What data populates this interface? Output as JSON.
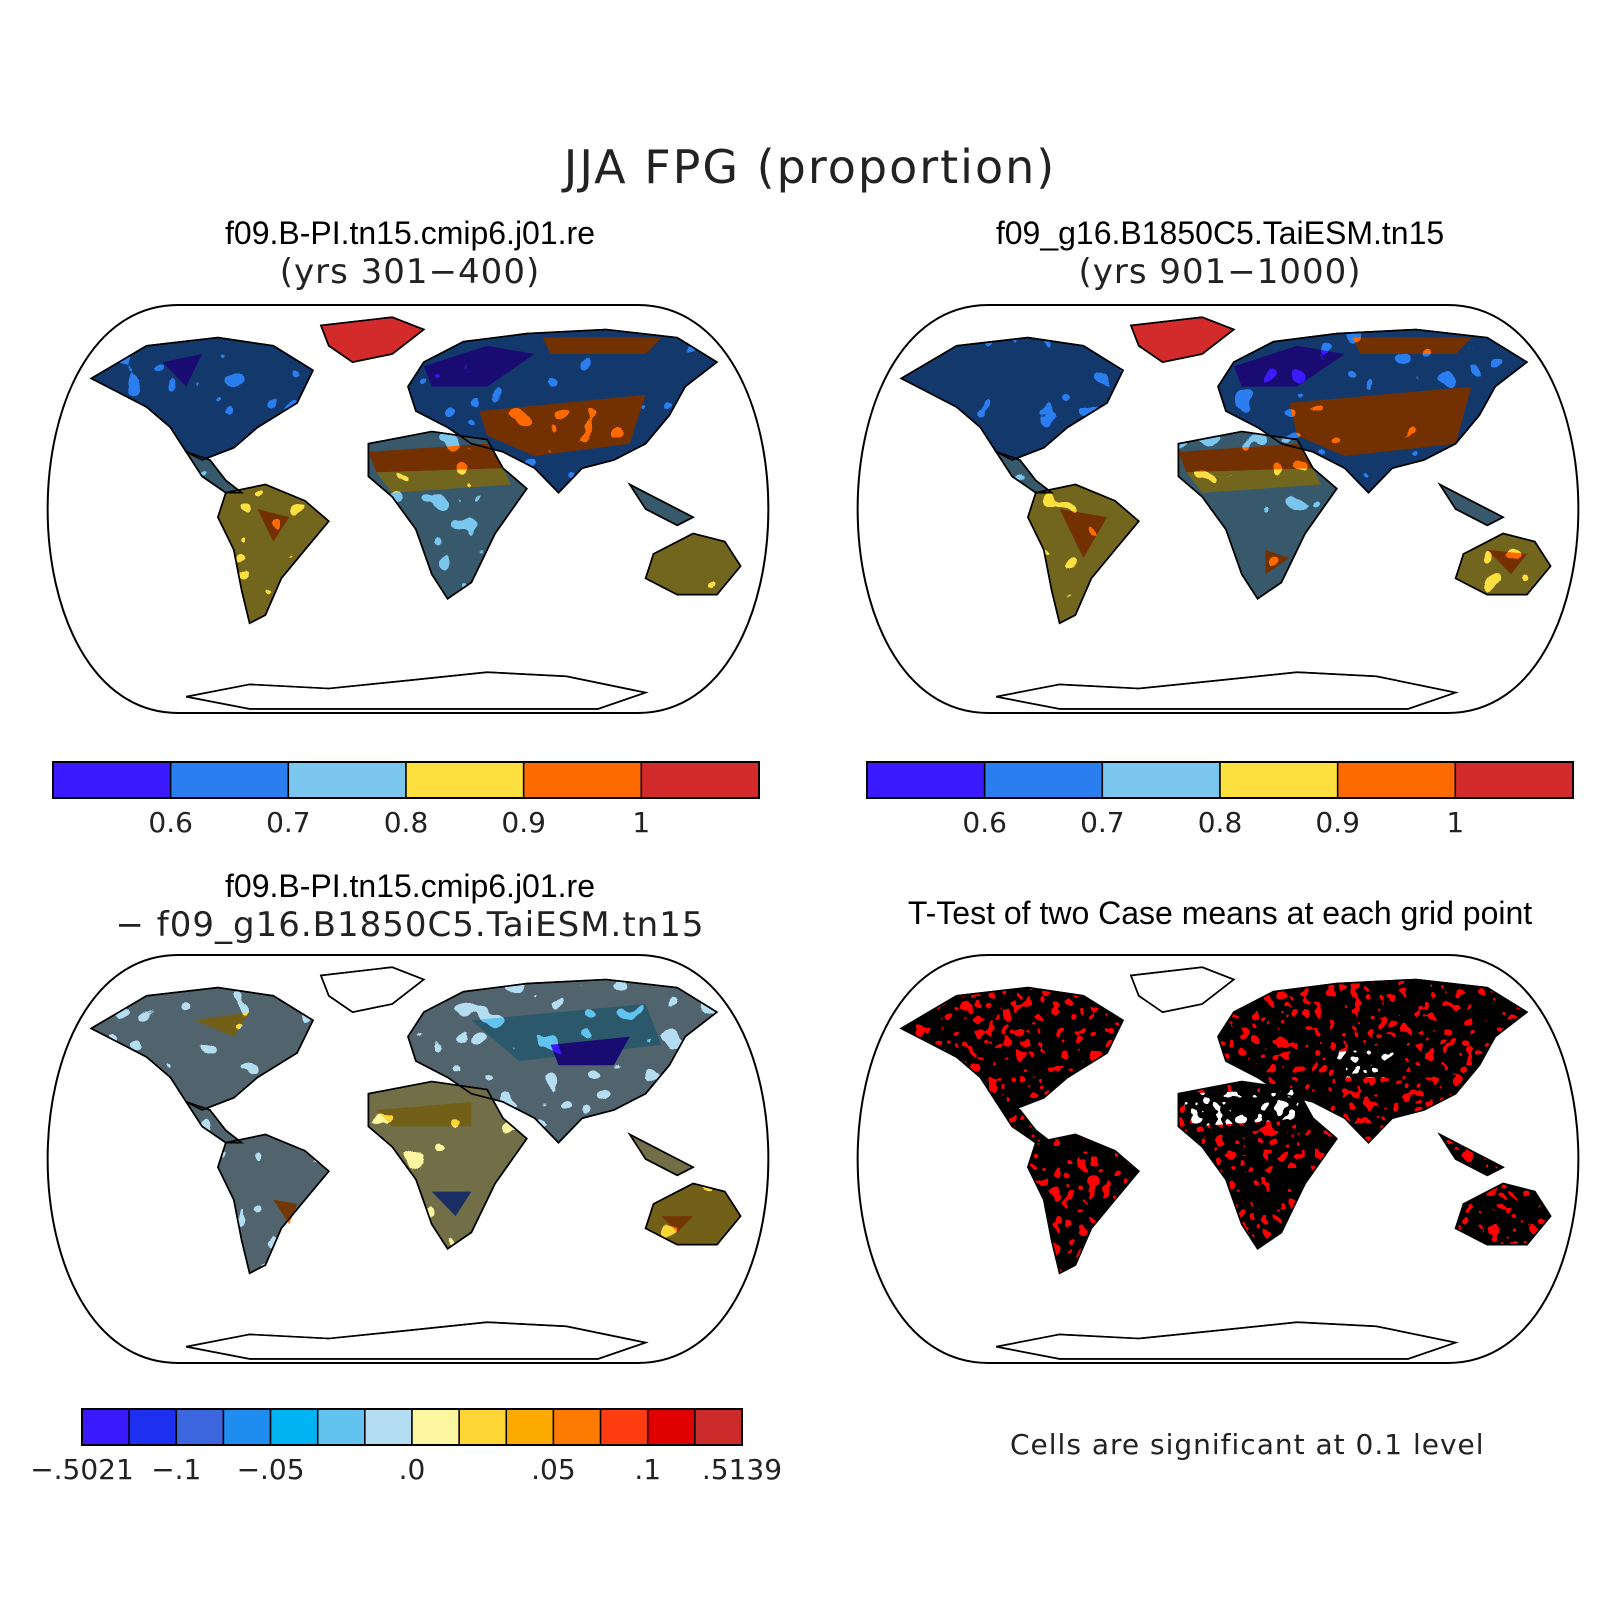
{
  "main_title": "JJA FPG (proportion)",
  "panels": [
    {
      "id": "case1",
      "title_line1": "f09.B-PI.tn15.cmip6.j01.re",
      "title_line2": "(yrs 301−400)"
    },
    {
      "id": "case2",
      "title_line1": "f09_g16.B1850C5.TaiESM.tn15",
      "title_line2": "(yrs 901−1000)"
    },
    {
      "id": "diff",
      "title_line1": "f09.B-PI.tn15.cmip6.j01.re",
      "title_line2": "− f09_g16.B1850C5.TaiESM.tn15"
    },
    {
      "id": "ttest",
      "title_line1": "T-Test of two Case means at each grid point",
      "title_line2": ""
    }
  ],
  "colorbar_abs": {
    "colors": [
      "#3b1aff",
      "#2a7ef0",
      "#7bc6ee",
      "#fde040",
      "#ff6a00",
      "#d32b2b"
    ],
    "labels": [
      "0.6",
      "0.7",
      "0.8",
      "0.9",
      "1"
    ]
  },
  "colorbar_diff": {
    "colors": [
      "#3b1aff",
      "#1d30f0",
      "#3b66dd",
      "#1f8cf0",
      "#00b4f4",
      "#62c3ef",
      "#b4ddf2",
      "#fdf6a0",
      "#fdd535",
      "#fdaa00",
      "#ff7a00",
      "#ff3d10",
      "#e00000",
      "#cc2b2b"
    ],
    "labels": [
      "−.5021",
      "−.1",
      "−.05",
      ".0",
      ".05",
      ".1",
      ".5139"
    ]
  },
  "ttest_note": "Cells are significant at 0.1 level",
  "significance_color": "#ff0000"
}
